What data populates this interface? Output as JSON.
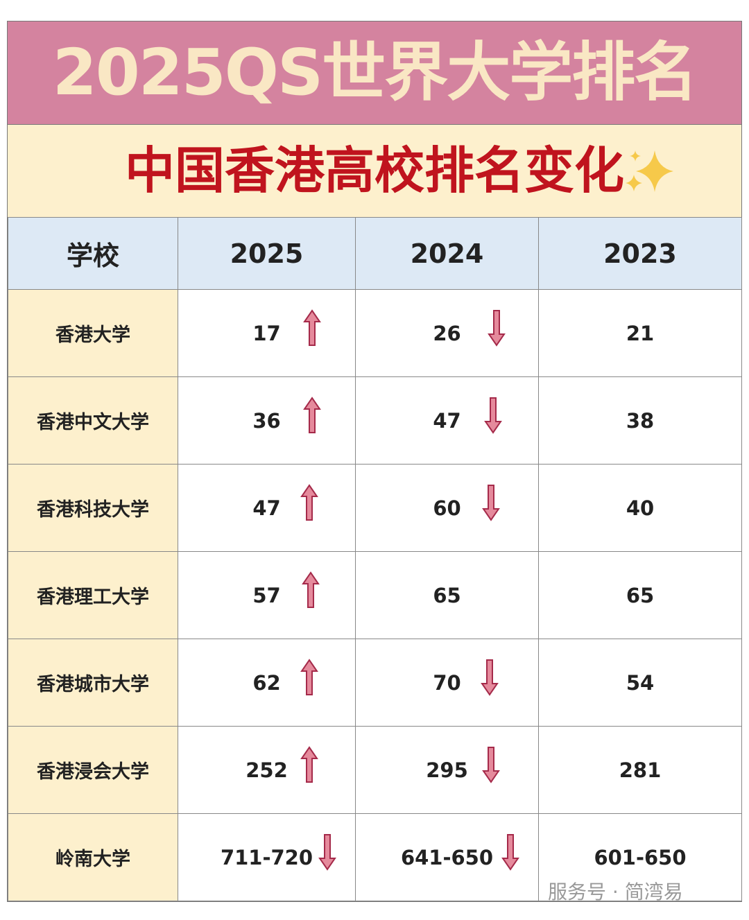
{
  "title": "2025QS世界大学排名",
  "subtitle": "中国香港高校排名变化",
  "table": {
    "header": [
      "学校",
      "2025",
      "2024",
      "2023"
    ],
    "rows": [
      [
        "香港大学",
        17,
        26,
        21
      ],
      [
        "香港中文大学",
        36,
        47,
        38
      ],
      [
        "香港科技大学",
        47,
        60,
        40
      ],
      [
        "香港理工大学",
        57,
        65,
        65
      ],
      [
        "香港城市大学",
        62,
        70,
        54
      ],
      [
        "香港浸会大学",
        252,
        295,
        281
      ],
      [
        "岭南大学",
        "711-720",
        "641-650",
        "601-650"
      ]
    ]
  },
  "watermark": "服务号 · 简湾易"
}
